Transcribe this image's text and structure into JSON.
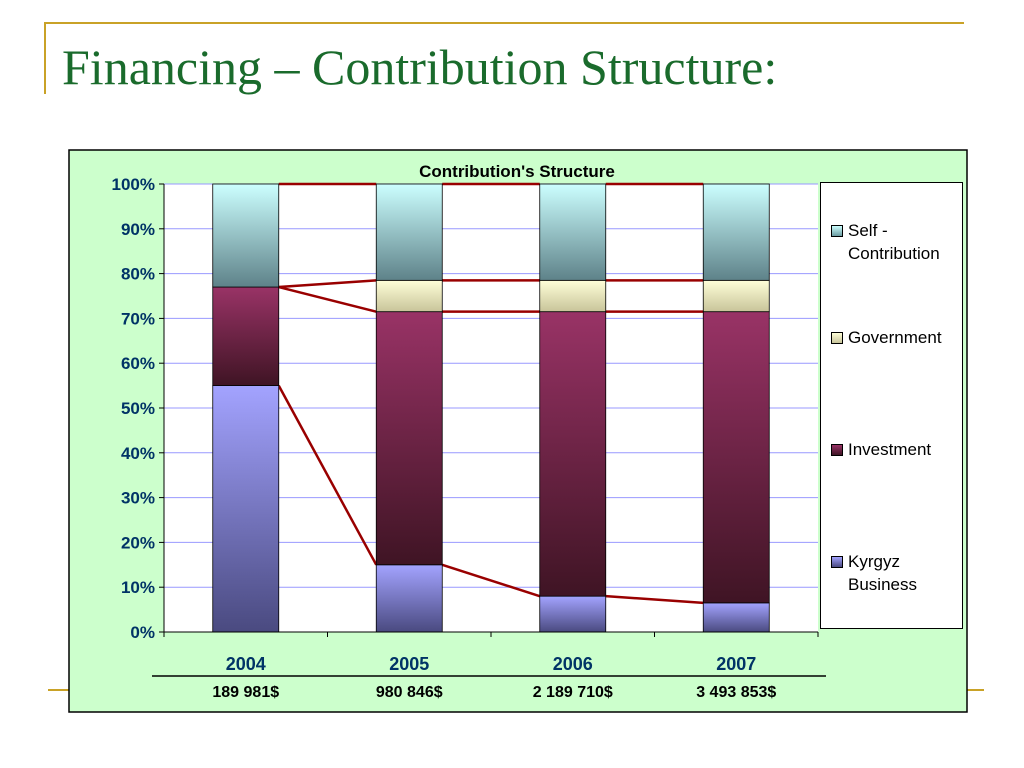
{
  "slide": {
    "title": "Financing – Contribution Structure:"
  },
  "chart_data": {
    "type": "bar",
    "stacked": true,
    "title": "Contribution's Structure",
    "categories": [
      "2004",
      "2005",
      "2006",
      "2007"
    ],
    "category_totals": [
      "189 981$",
      "980 846$",
      "2 189 710$",
      "3 493 853$"
    ],
    "ylim": [
      0,
      100
    ],
    "yticks": [
      "0%",
      "10%",
      "20%",
      "30%",
      "40%",
      "50%",
      "60%",
      "70%",
      "80%",
      "90%",
      "100%"
    ],
    "grid": true,
    "legend_position": "right",
    "series": [
      {
        "name": "Kyrgyz Business",
        "values": [
          55,
          15,
          8,
          6.5
        ],
        "color": "#9999ff"
      },
      {
        "name": "Investment",
        "values": [
          22,
          56.5,
          63.5,
          65
        ],
        "color": "#993366"
      },
      {
        "name": "Government",
        "values": [
          0,
          7,
          7,
          7
        ],
        "color": "#ffffcc"
      },
      {
        "name": "Self - Contribution",
        "values": [
          23,
          21.5,
          21.5,
          21.5
        ],
        "color": "#ccffff"
      }
    ],
    "legend": [
      "Self - Contribution",
      "Government",
      "Investment",
      "Kyrgyz Business"
    ],
    "series_lines_color": "#990000",
    "plot_background": "#ffffff",
    "chart_background": "#ccffcc",
    "axis_text_color": "#003366"
  }
}
